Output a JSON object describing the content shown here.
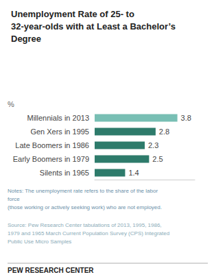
{
  "chart_data": {
    "type": "bar",
    "orientation": "horizontal",
    "title": "Unemployment Rate of 25- to\n32-year-olds with at Least a Bachelor’s\nDegree",
    "xlabel": "%",
    "categories": [
      "Millennials in 2013",
      "Gen Xers in 1995",
      "Late Boomers in 1986",
      "Early Boomers in 1979",
      "Silents in 1965"
    ],
    "values": [
      3.8,
      2.8,
      2.3,
      2.5,
      1.4
    ],
    "colors": [
      "#78BFB4",
      "#2E7B6B",
      "#2E7B6B",
      "#2E7B6B",
      "#2E7B6B"
    ],
    "xlim": [
      0,
      4.6
    ],
    "tick_labels": "y",
    "data_labels": true,
    "grid": false,
    "annotations": [
      "Notes: The unemployment rate refers to the share of the labor force\n(those working or actively seeking work) who are not employed.",
      "Source: Pew Research Center tabulations of 2013, 1995, 1986,\n1979 and 1965 March Current Population Survey (CPS) Integrated\nPublic Use Micro Samples",
      "PEW RESEARCH CENTER"
    ]
  }
}
